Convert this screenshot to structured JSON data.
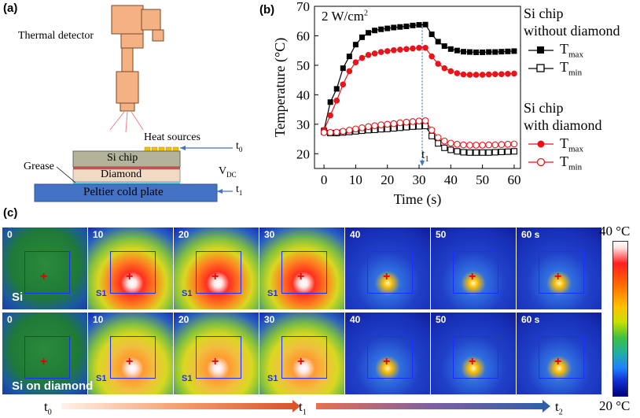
{
  "panel_a": {
    "label": "(a)",
    "thermal_detector": "Thermal detector",
    "heat_sources": "Heat sources",
    "si_chip": "Si chip",
    "diamond": "Diamond",
    "grease": "Grease",
    "peltier": "Peltier cold plate",
    "vdc": "V",
    "vdc_sub": "DC",
    "t0": "t",
    "t0_sub": "0",
    "t1": "t",
    "t1_sub": "1"
  },
  "panel_b": {
    "label": "(b)",
    "annotation": "2 W/cm",
    "annotation_sup": "2",
    "t1_marker": "t",
    "t1_marker_sub": "1",
    "legend": {
      "group1_line1": "Si chip",
      "group1_line2": "without diamond",
      "group2_line1": "Si chip",
      "group2_line2": "with diamond",
      "tmax": "T",
      "tmax_sub": "max",
      "tmin": "T",
      "tmin_sub": "min"
    }
  },
  "panel_c": {
    "label": "(c)",
    "row1_label": "Si",
    "row2_label": "Si on diamond",
    "frame_labels": [
      "0",
      "10",
      "20",
      "30",
      "40",
      "50",
      "60 s"
    ],
    "s1_label": "S1",
    "colorbar_top": "40 °C",
    "colorbar_bottom": "20 °C",
    "timeline": {
      "t0": "t",
      "t0_sub": "0",
      "t1": "t",
      "t1_sub": "1",
      "t2": "t",
      "t2_sub": "2"
    }
  },
  "colors": {
    "black_series": "#000000",
    "red_series": "#e8141a",
    "peltier": "#4472c4",
    "si_chip": "#b3b39a",
    "diamond": "#f2d9c4",
    "detector": "#f4b183",
    "heat_source": "#f5c000"
  },
  "chart_data": {
    "type": "line",
    "xlabel": "Time (s)",
    "ylabel": "Temperature (°C)",
    "xlim": [
      -3,
      62
    ],
    "ylim": [
      15,
      70
    ],
    "xticks": [
      0,
      10,
      20,
      30,
      40,
      50,
      60
    ],
    "yticks": [
      20,
      30,
      40,
      50,
      60,
      70
    ],
    "x": [
      0,
      2,
      4,
      6,
      8,
      10,
      12,
      14,
      16,
      18,
      20,
      22,
      24,
      26,
      28,
      30,
      32,
      34,
      36,
      38,
      40,
      42,
      44,
      46,
      48,
      50,
      52,
      54,
      56,
      58,
      60
    ],
    "series": [
      {
        "name": "Si chip without diamond T_max",
        "marker": "filled-square",
        "color": "#000000",
        "values": [
          28,
          37.5,
          42,
          49,
          53,
          57,
          59.5,
          61,
          61.8,
          62.2,
          62.5,
          62.8,
          63,
          63.2,
          63.5,
          63.7,
          63.8,
          60.5,
          58,
          56.5,
          55.5,
          55,
          54.6,
          54.5,
          54.4,
          54.4,
          54.5,
          54.5,
          54.6,
          54.7,
          54.8
        ]
      },
      {
        "name": "Si chip without diamond T_min",
        "marker": "open-square",
        "color": "#000000",
        "values": [
          27.5,
          27,
          27,
          27.2,
          27.4,
          27.6,
          27.8,
          28,
          28.1,
          28.3,
          28.4,
          28.6,
          28.8,
          29,
          29.2,
          29.3,
          29.4,
          26,
          23.5,
          22,
          21.3,
          20.8,
          20.5,
          20.4,
          20.4,
          20.4,
          20.4,
          20.5,
          20.6,
          20.7,
          20.8
        ]
      },
      {
        "name": "Si chip with diamond T_max",
        "marker": "filled-circle",
        "color": "#e8141a",
        "values": [
          28,
          33,
          38,
          43.5,
          48,
          51,
          52.5,
          53.5,
          54,
          54.5,
          54.8,
          55.1,
          55.3,
          55.5,
          55.7,
          55.9,
          55.9,
          53,
          50.5,
          49,
          48,
          47.3,
          46.9,
          46.8,
          46.8,
          46.8,
          46.9,
          47,
          47,
          47.1,
          47.2
        ]
      },
      {
        "name": "Si chip with diamond T_min",
        "marker": "open-circle",
        "color": "#e8141a",
        "values": [
          27.2,
          27.2,
          27.3,
          27.6,
          28,
          28.4,
          28.8,
          29.2,
          29.5,
          29.8,
          30,
          30.2,
          30.5,
          30.7,
          30.9,
          31.1,
          31.2,
          28,
          25.5,
          24.3,
          23.6,
          23.2,
          23,
          22.9,
          22.9,
          22.9,
          23,
          23,
          23.1,
          23.2,
          23.3
        ]
      }
    ],
    "annotations": [
      {
        "text": "2 W/cm2",
        "position": "top-left"
      },
      {
        "text": "t1",
        "x": 31
      }
    ]
  }
}
